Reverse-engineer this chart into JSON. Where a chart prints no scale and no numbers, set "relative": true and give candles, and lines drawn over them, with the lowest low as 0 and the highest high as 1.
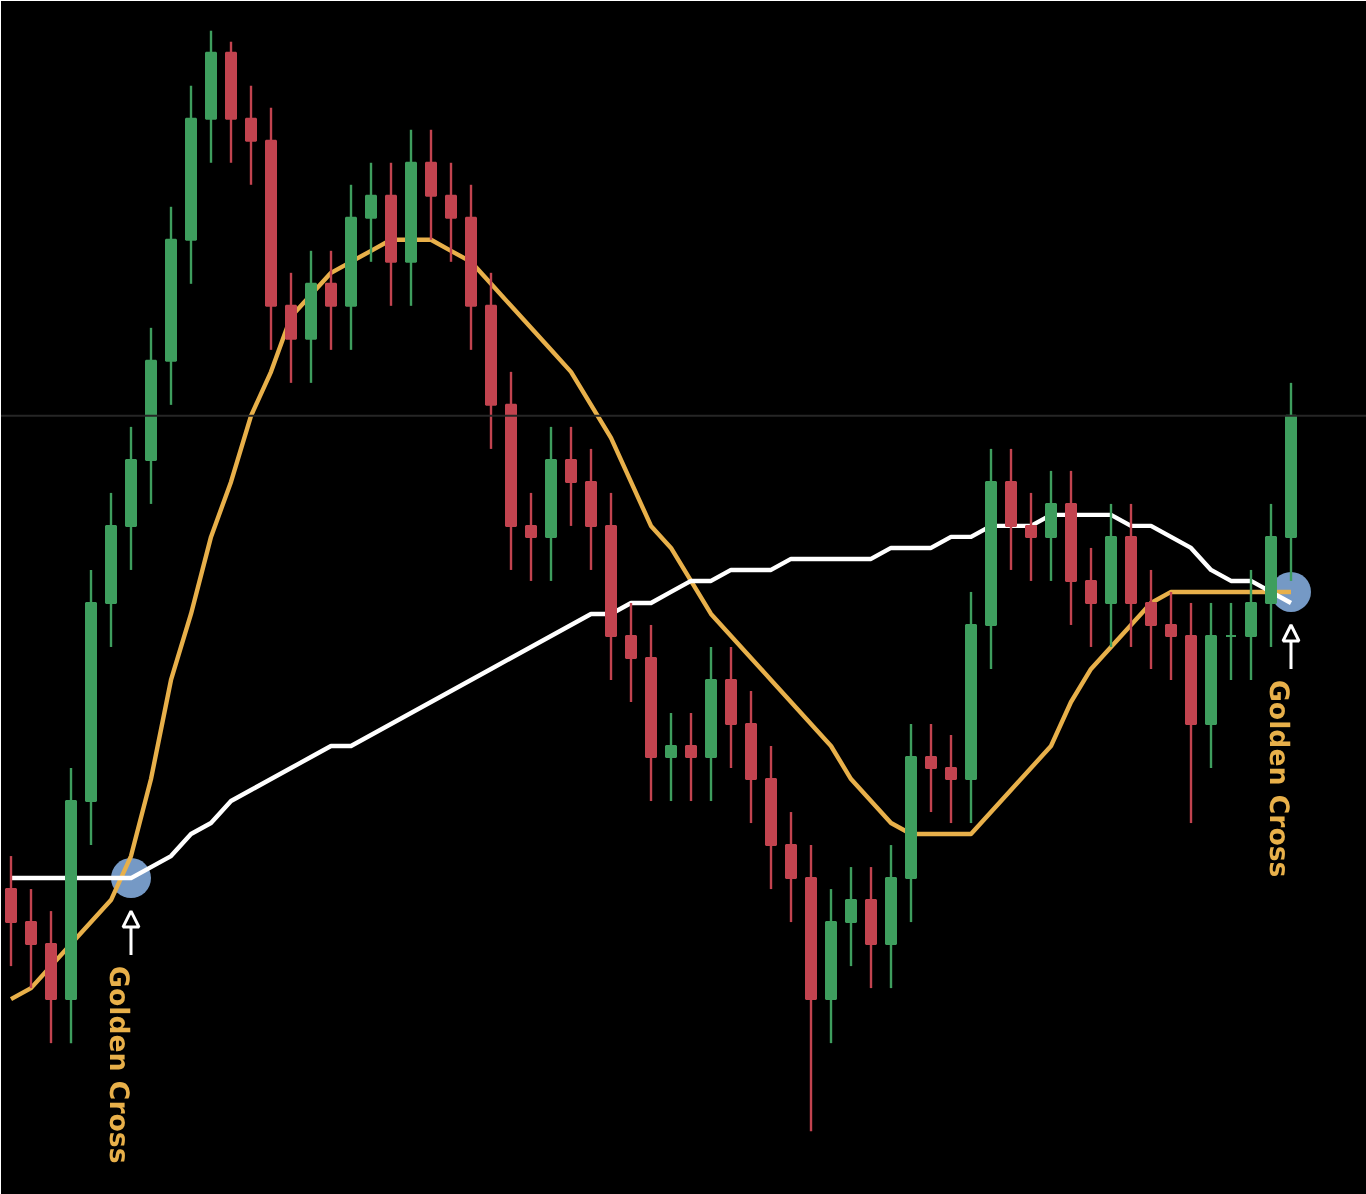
{
  "chart_data": {
    "type": "candlestick",
    "relative": true,
    "categories": [
      null,
      null,
      null,
      null,
      null,
      null,
      null,
      null,
      null,
      null,
      null,
      null,
      null,
      null,
      null,
      null,
      null,
      null,
      null,
      null,
      null,
      null,
      null,
      null,
      null,
      null,
      null,
      null,
      null,
      null,
      null,
      null,
      null,
      null,
      null,
      null,
      null,
      null,
      null,
      null,
      null,
      null,
      null,
      null,
      null,
      null,
      null,
      null,
      null,
      null,
      null,
      null,
      null,
      null,
      null,
      null,
      null,
      null,
      null,
      null,
      null,
      null,
      null,
      null,
      null
    ],
    "ohlc": [
      [
        0.22,
        0.25,
        0.15,
        0.19
      ],
      [
        0.19,
        0.22,
        0.13,
        0.17
      ],
      [
        0.17,
        0.2,
        0.08,
        0.12
      ],
      [
        0.12,
        0.33,
        0.08,
        0.3
      ],
      [
        0.3,
        0.51,
        0.26,
        0.48
      ],
      [
        0.48,
        0.58,
        0.44,
        0.55
      ],
      [
        0.55,
        0.64,
        0.51,
        0.61
      ],
      [
        0.61,
        0.73,
        0.57,
        0.7
      ],
      [
        0.7,
        0.84,
        0.66,
        0.81
      ],
      [
        0.81,
        0.95,
        0.77,
        0.92
      ],
      [
        0.92,
        1.0,
        0.88,
        0.98
      ],
      [
        0.98,
        0.99,
        0.88,
        0.92
      ],
      [
        0.92,
        0.95,
        0.86,
        0.9
      ],
      [
        0.9,
        0.93,
        0.71,
        0.75
      ],
      [
        0.75,
        0.78,
        0.68,
        0.72
      ],
      [
        0.72,
        0.8,
        0.68,
        0.77
      ],
      [
        0.77,
        0.8,
        0.71,
        0.75
      ],
      [
        0.75,
        0.86,
        0.71,
        0.83
      ],
      [
        0.83,
        0.88,
        0.79,
        0.85
      ],
      [
        0.85,
        0.88,
        0.75,
        0.79
      ],
      [
        0.79,
        0.91,
        0.75,
        0.88
      ],
      [
        0.88,
        0.91,
        0.81,
        0.85
      ],
      [
        0.85,
        0.88,
        0.79,
        0.83
      ],
      [
        0.83,
        0.86,
        0.71,
        0.75
      ],
      [
        0.75,
        0.78,
        0.62,
        0.66
      ],
      [
        0.66,
        0.69,
        0.51,
        0.55
      ],
      [
        0.55,
        0.58,
        0.5,
        0.54
      ],
      [
        0.54,
        0.64,
        0.5,
        0.61
      ],
      [
        0.61,
        0.64,
        0.55,
        0.59
      ],
      [
        0.59,
        0.62,
        0.51,
        0.55
      ],
      [
        0.55,
        0.58,
        0.41,
        0.45
      ],
      [
        0.45,
        0.48,
        0.39,
        0.43
      ],
      [
        0.43,
        0.46,
        0.3,
        0.34
      ],
      [
        0.34,
        0.38,
        0.3,
        0.35
      ],
      [
        0.35,
        0.38,
        0.3,
        0.34
      ],
      [
        0.34,
        0.44,
        0.3,
        0.41
      ],
      [
        0.41,
        0.44,
        0.33,
        0.37
      ],
      [
        0.37,
        0.4,
        0.28,
        0.32
      ],
      [
        0.32,
        0.35,
        0.22,
        0.26
      ],
      [
        0.26,
        0.29,
        0.19,
        0.23
      ],
      [
        0.23,
        0.26,
        0.0,
        0.12
      ],
      [
        0.12,
        0.22,
        0.08,
        0.19
      ],
      [
        0.19,
        0.24,
        0.15,
        0.21
      ],
      [
        0.21,
        0.24,
        0.13,
        0.17
      ],
      [
        0.17,
        0.26,
        0.13,
        0.23
      ],
      [
        0.23,
        0.37,
        0.19,
        0.34
      ],
      [
        0.34,
        0.37,
        0.29,
        0.33
      ],
      [
        0.33,
        0.36,
        0.28,
        0.32
      ],
      [
        0.32,
        0.49,
        0.28,
        0.46
      ],
      [
        0.46,
        0.62,
        0.42,
        0.59
      ],
      [
        0.59,
        0.62,
        0.51,
        0.55
      ],
      [
        0.55,
        0.58,
        0.5,
        0.54
      ],
      [
        0.54,
        0.6,
        0.5,
        0.57
      ],
      [
        0.57,
        0.6,
        0.46,
        0.5
      ],
      [
        0.5,
        0.53,
        0.44,
        0.48
      ],
      [
        0.48,
        0.57,
        0.44,
        0.54
      ],
      [
        0.54,
        0.57,
        0.44,
        0.48
      ],
      [
        0.48,
        0.51,
        0.42,
        0.46
      ],
      [
        0.46,
        0.49,
        0.41,
        0.45
      ],
      [
        0.45,
        0.48,
        0.28,
        0.37
      ],
      [
        0.37,
        0.48,
        0.33,
        0.45
      ],
      [
        0.45,
        0.48,
        0.41,
        0.45
      ],
      [
        0.45,
        0.51,
        0.41,
        0.48
      ],
      [
        0.48,
        0.57,
        0.44,
        0.54
      ],
      [
        0.54,
        0.68,
        0.5,
        0.65
      ]
    ],
    "series": [
      {
        "type": "line",
        "color": "#e8b04a",
        "values": [
          0.12,
          0.13,
          0.15,
          0.17,
          0.19,
          0.21,
          0.25,
          0.32,
          0.41,
          0.47,
          0.54,
          0.59,
          0.65,
          0.69,
          0.74,
          0.76,
          0.78,
          0.79,
          0.8,
          0.81,
          0.81,
          0.81,
          0.8,
          0.79,
          0.77,
          0.75,
          0.73,
          0.71,
          0.69,
          0.66,
          0.63,
          0.59,
          0.55,
          0.53,
          0.5,
          0.47,
          0.45,
          0.43,
          0.41,
          0.39,
          0.37,
          0.35,
          0.32,
          0.3,
          0.28,
          0.27,
          0.27,
          0.27,
          0.27,
          0.29,
          0.31,
          0.33,
          0.35,
          0.39,
          0.42,
          0.44,
          0.46,
          0.48,
          0.49,
          0.49,
          0.49,
          0.49,
          0.49,
          0.49,
          0.49
        ]
      },
      {
        "type": "line",
        "color": "#ffffff",
        "values": [
          0.23,
          0.23,
          0.23,
          0.23,
          0.23,
          0.23,
          0.23,
          0.24,
          0.25,
          0.27,
          0.28,
          0.3,
          0.31,
          0.32,
          0.33,
          0.34,
          0.35,
          0.35,
          0.36,
          0.37,
          0.38,
          0.39,
          0.4,
          0.41,
          0.42,
          0.43,
          0.44,
          0.45,
          0.46,
          0.47,
          0.47,
          0.48,
          0.48,
          0.49,
          0.5,
          0.5,
          0.51,
          0.51,
          0.51,
          0.52,
          0.52,
          0.52,
          0.52,
          0.52,
          0.53,
          0.53,
          0.53,
          0.54,
          0.54,
          0.55,
          0.55,
          0.55,
          0.56,
          0.56,
          0.56,
          0.56,
          0.55,
          0.55,
          0.54,
          0.53,
          0.51,
          0.5,
          0.5,
          0.49,
          0.48
        ]
      },
      {
        "type": "scatter",
        "marker": "circle",
        "color": "#8ab4e8",
        "values": [
          null,
          null,
          null,
          null,
          null,
          null,
          0.23,
          null,
          null,
          null,
          null,
          null,
          null,
          null,
          null,
          null,
          null,
          null,
          null,
          null,
          null,
          null,
          null,
          null,
          null,
          null,
          null,
          null,
          null,
          null,
          null,
          null,
          null,
          null,
          null,
          null,
          null,
          null,
          null,
          null,
          null,
          null,
          null,
          null,
          null,
          null,
          null,
          null,
          null,
          null,
          null,
          null,
          null,
          null,
          null,
          null,
          null,
          null,
          null,
          null,
          null,
          null,
          null,
          null,
          0.49
        ]
      }
    ],
    "ref_lines": [
      {
        "axis": "y",
        "value": 0.65,
        "color": "#262626"
      }
    ],
    "annotations": [
      "Golden Cross",
      "Golden Cross"
    ],
    "tick_labels": false,
    "grid": false
  }
}
